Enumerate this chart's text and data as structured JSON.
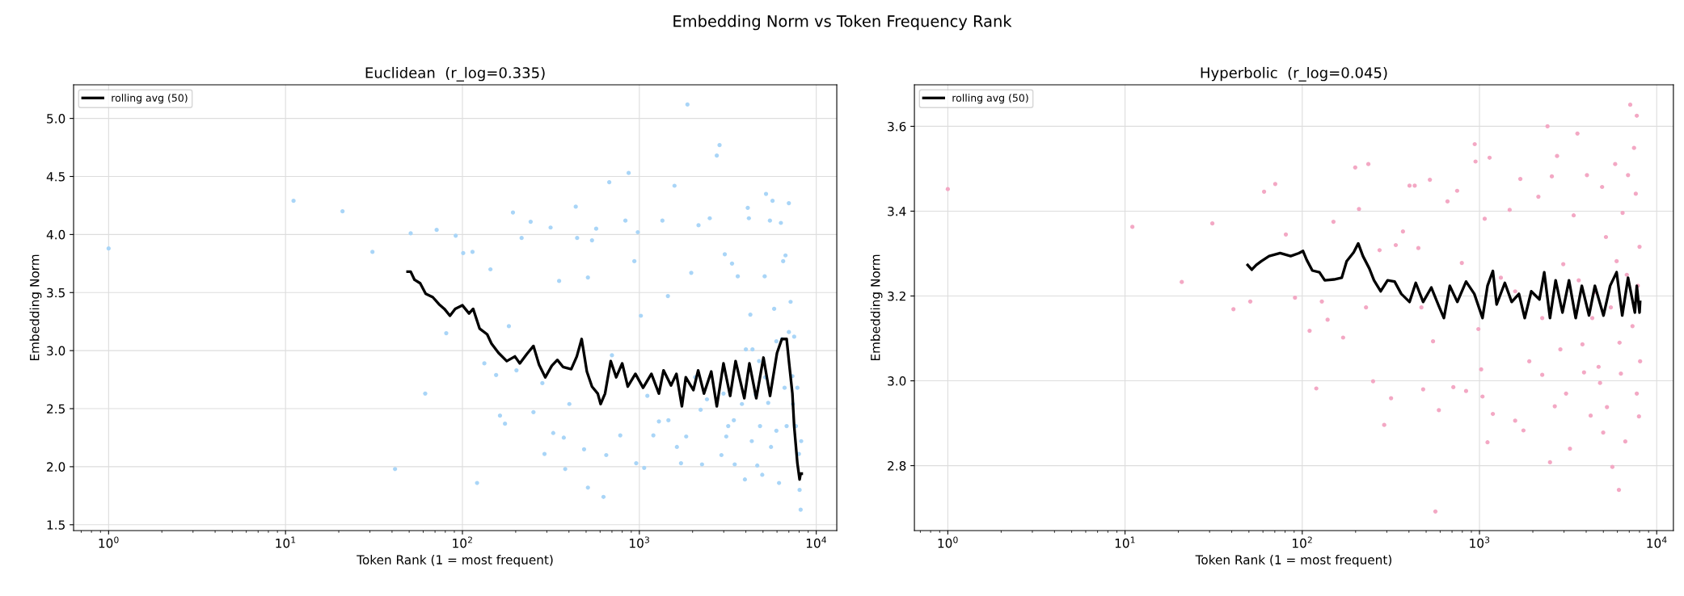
{
  "chart_data": [
    {
      "type": "scatter",
      "title": "Euclidean  (r_log=0.335)",
      "xlabel": "Token Rank (1 = most frequent)",
      "ylabel": "Embedding Norm",
      "annotations": [
        "Embedding Norm vs Token Frequency Rank"
      ],
      "log": "x",
      "grid": true,
      "legend": "top left",
      "xlim": [
        0.634,
        13060
      ],
      "ylim": [
        1.45,
        5.29
      ],
      "xticks": [
        {
          "value": 1,
          "label": "10$^{0}$"
        },
        {
          "value": 10,
          "label": "10$^{1}$"
        },
        {
          "value": 100,
          "label": "10$^{2}$"
        },
        {
          "value": 1000,
          "label": "10$^{3}$"
        },
        {
          "value": 10000,
          "label": "10$^{4}$"
        }
      ],
      "yticks": [
        1.5,
        {
          "value": 2,
          "label": "2.0"
        },
        2.5,
        {
          "value": 3,
          "label": "3.0"
        },
        3.5,
        {
          "value": 4,
          "label": "4.0"
        },
        4.5,
        {
          "value": 5,
          "label": "5.0"
        }
      ],
      "series": [
        {
          "marker": "circle",
          "color": "#a9d5f7",
          "x": [
            1,
            11.1,
            21,
            31,
            41.6,
            51,
            61.6,
            71.5,
            91.6,
            81,
            101,
            114,
            121,
            133,
            144,
            155,
            163,
            174,
            183,
            193,
            202,
            216,
            243,
            252,
            283,
            291,
            315,
            326,
            352,
            374,
            381,
            402,
            437,
            445,
            487,
            512,
            512,
            540,
            570,
            627,
            676,
            650,
            700,
            780,
            834,
            870,
            937,
            960,
            980,
            1020,
            1065,
            1110,
            1200,
            1290,
            1350,
            1450,
            1580,
            1630,
            1720,
            1870,
            1965,
            2070,
            2160,
            2260,
            2410,
            2500,
            2740,
            2840,
            2910,
            3040,
            3100,
            3340,
            3460,
            3600,
            3950,
            4100,
            4000,
            4160,
            4240,
            4320,
            4540,
            4640,
            4750,
            4950,
            5110,
            5200,
            5350,
            5470,
            5660,
            5780,
            5950,
            5950,
            6160,
            6310,
            6500,
            6700,
            6800,
            7000,
            7000,
            7160,
            7330,
            7500,
            7670,
            7820,
            7980,
            8050,
            8160,
            8220,
            2990,
            3420,
            3800,
            4810,
            5550,
            3180,
            2220,
            1840,
            1460,
            5150,
            6620,
            7380,
            4360,
            6400
          ],
          "values": [
            3.88,
            4.29,
            4.2,
            3.85,
            1.98,
            4.01,
            2.63,
            4.04,
            3.99,
            3.15,
            3.84,
            3.85,
            1.86,
            2.89,
            3.7,
            2.79,
            2.44,
            2.37,
            3.21,
            4.19,
            2.83,
            3.97,
            4.11,
            2.47,
            2.72,
            2.11,
            4.06,
            2.29,
            3.6,
            2.25,
            1.98,
            2.54,
            4.24,
            3.97,
            2.15,
            3.63,
            1.82,
            3.95,
            4.05,
            1.74,
            4.45,
            2.1,
            2.96,
            2.27,
            4.12,
            4.53,
            3.77,
            2.03,
            4.02,
            3.3,
            1.99,
            2.61,
            2.27,
            2.39,
            4.12,
            3.47,
            4.42,
            2.17,
            2.03,
            5.12,
            3.67,
            2.77,
            4.08,
            2.02,
            2.58,
            4.14,
            4.68,
            4.77,
            2.1,
            3.83,
            2.26,
            3.75,
            2.02,
            3.64,
            1.89,
            4.23,
            3.01,
            4.14,
            3.31,
            2.22,
            2.62,
            2.01,
            2.91,
            1.93,
            3.64,
            4.35,
            2.55,
            4.12,
            4.29,
            3.36,
            3.08,
            2.31,
            1.86,
            4.1,
            3.77,
            3.82,
            2.35,
            4.27,
            3.16,
            3.42,
            2.78,
            3.12,
            2.35,
            2.68,
            2.11,
            1.8,
            1.63,
            2.22,
            2.63,
            2.4,
            2.54,
            2.35,
            2.17,
            2.35,
            2.49,
            2.26,
            2.4,
            2.77,
            2.68,
            2.54,
            3.01,
            3.1
          ]
        },
        {
          "type": "line",
          "name": "rolling avg (50)",
          "color": "#000000",
          "x": [
            49,
            51,
            53.6,
            57.7,
            62,
            68,
            73.7,
            79,
            85,
            91,
            100,
            109,
            115,
            125,
            138,
            146,
            160,
            178,
            198,
            211,
            231,
            252,
            271,
            294,
            320,
            344,
            370,
            412,
            443,
            472,
            505,
            540,
            582,
            604,
            640,
            689,
            740,
            800,
            860,
            950,
            1050,
            1170,
            1290,
            1370,
            1510,
            1620,
            1740,
            1830,
            2020,
            2150,
            2320,
            2550,
            2740,
            2990,
            3260,
            3500,
            3920,
            4190,
            4580,
            5030,
            5480,
            6000,
            6390,
            6800,
            7050,
            7330,
            7500,
            7820,
            8050,
            8160,
            8270
          ],
          "values": [
            3.68,
            3.68,
            3.61,
            3.58,
            3.49,
            3.46,
            3.4,
            3.36,
            3.3,
            3.36,
            3.39,
            3.32,
            3.36,
            3.19,
            3.14,
            3.06,
            2.98,
            2.91,
            2.95,
            2.89,
            2.97,
            3.04,
            2.88,
            2.77,
            2.87,
            2.92,
            2.86,
            2.84,
            2.95,
            3.1,
            2.82,
            2.69,
            2.63,
            2.54,
            2.63,
            2.91,
            2.77,
            2.89,
            2.69,
            2.8,
            2.68,
            2.8,
            2.63,
            2.83,
            2.7,
            2.8,
            2.52,
            2.77,
            2.66,
            2.83,
            2.63,
            2.82,
            2.52,
            2.89,
            2.61,
            2.91,
            2.59,
            2.89,
            2.59,
            2.94,
            2.61,
            2.98,
            3.1,
            3.1,
            2.87,
            2.63,
            2.35,
            2.03,
            1.89,
            1.94,
            1.94
          ]
        }
      ]
    },
    {
      "type": "scatter",
      "title": "Hyperbolic  (r_log=0.045)",
      "xlabel": "Token Rank (1 = most frequent)",
      "ylabel": "Embedding Norm",
      "log": "x",
      "grid": true,
      "legend": "top left",
      "xlim": [
        0.648,
        12420
      ],
      "ylim": [
        2.647,
        3.698
      ],
      "xticks": [
        {
          "value": 1,
          "label": "10$^{0}$"
        },
        {
          "value": 10,
          "label": "10$^{1}$"
        },
        {
          "value": 100,
          "label": "10$^{2}$"
        },
        {
          "value": 1000,
          "label": "10$^{3}$"
        },
        {
          "value": 10000,
          "label": "10$^{4}$"
        }
      ],
      "yticks": [
        2.8,
        {
          "value": 3,
          "label": "3.0"
        },
        3.2,
        3.4,
        3.6
      ],
      "series": [
        {
          "marker": "circle",
          "color": "#f3a8c4",
          "x": [
            1,
            11.0,
            20.9,
            31.1,
            40.9,
            50.9,
            60.9,
            70.4,
            80.8,
            91,
            110,
            120,
            129,
            139,
            150,
            170,
            199,
            209,
            236,
            229,
            251,
            273,
            290,
            317,
            337,
            370,
            403,
            431,
            452,
            470,
            481,
            525,
            547,
            564,
            590,
            660,
            712,
            748,
            795,
            840,
            940,
            950,
            986,
            1022,
            1040,
            1070,
            1110,
            1140,
            1190,
            1320,
            1480,
            1590,
            1700,
            1770,
            1910,
            2150,
            2260,
            2420,
            2500,
            2560,
            2660,
            2740,
            2860,
            3080,
            3240,
            3400,
            3570,
            3810,
            4040,
            4240,
            4480,
            4700,
            4920,
            4990,
            5240,
            5510,
            5620,
            5830,
            5940,
            6120,
            6280,
            6420,
            6650,
            6890,
            7090,
            7300,
            7450,
            7620,
            7720,
            7720,
            7820,
            7940,
            8000,
            8060,
            2970,
            3630,
            4330,
            5170,
            6170,
            6780,
            2260,
            1590,
            4790,
            3890
          ],
          "values": [
            3.452,
            3.363,
            3.233,
            3.371,
            3.169,
            3.187,
            3.446,
            3.464,
            3.345,
            3.196,
            3.118,
            2.982,
            3.187,
            3.144,
            3.375,
            3.102,
            3.503,
            3.405,
            3.511,
            3.173,
            2.999,
            3.308,
            2.896,
            2.959,
            3.32,
            3.352,
            3.46,
            3.46,
            3.313,
            3.173,
            2.98,
            3.474,
            3.093,
            2.692,
            2.931,
            3.423,
            2.985,
            3.448,
            3.278,
            2.976,
            3.558,
            3.517,
            3.122,
            3.027,
            2.963,
            3.382,
            2.855,
            3.526,
            2.922,
            3.243,
            3.403,
            2.906,
            3.476,
            2.883,
            3.046,
            3.434,
            3.014,
            3.6,
            2.808,
            3.482,
            2.94,
            3.53,
            3.074,
            2.97,
            2.84,
            3.39,
            3.583,
            3.086,
            3.485,
            2.918,
            3.209,
            3.033,
            3.457,
            2.878,
            2.938,
            3.173,
            2.797,
            3.511,
            3.282,
            2.743,
            3.017,
            3.396,
            2.857,
            3.485,
            3.651,
            3.129,
            3.549,
            3.441,
            2.97,
            3.625,
            3.224,
            2.916,
            3.316,
            3.046,
            3.275,
            3.237,
            3.148,
            3.339,
            3.09,
            3.25,
            3.148,
            3.211,
            2.995,
            3.02
          ]
        },
        {
          "type": "line",
          "name": "rolling avg (50)",
          "color": "#000000",
          "x": [
            49.2,
            51.9,
            55,
            58.8,
            65,
            75,
            86,
            95.7,
            101,
            106,
            114,
            125,
            134,
            151,
            167,
            178,
            195,
            207,
            220,
            239,
            254,
            277,
            303,
            332,
            362,
            403,
            437,
            481,
            535,
            590,
            630,
            680,
            750,
            840,
            935,
            1040,
            1110,
            1190,
            1250,
            1390,
            1520,
            1670,
            1800,
            1960,
            2180,
            2320,
            2500,
            2690,
            2940,
            3200,
            3490,
            3780,
            4150,
            4480,
            5010,
            5460,
            5940,
            6390,
            6890,
            7530,
            7720,
            8000,
            8060
          ],
          "values": [
            3.273,
            3.262,
            3.273,
            3.282,
            3.294,
            3.301,
            3.294,
            3.301,
            3.306,
            3.285,
            3.26,
            3.256,
            3.237,
            3.239,
            3.243,
            3.282,
            3.303,
            3.324,
            3.294,
            3.265,
            3.237,
            3.211,
            3.237,
            3.234,
            3.205,
            3.186,
            3.231,
            3.186,
            3.22,
            3.176,
            3.148,
            3.224,
            3.186,
            3.234,
            3.205,
            3.148,
            3.224,
            3.259,
            3.18,
            3.231,
            3.186,
            3.205,
            3.148,
            3.211,
            3.192,
            3.256,
            3.148,
            3.237,
            3.161,
            3.237,
            3.148,
            3.224,
            3.154,
            3.224,
            3.154,
            3.224,
            3.256,
            3.154,
            3.243,
            3.161,
            3.224,
            3.161,
            3.186
          ]
        }
      ]
    }
  ]
}
